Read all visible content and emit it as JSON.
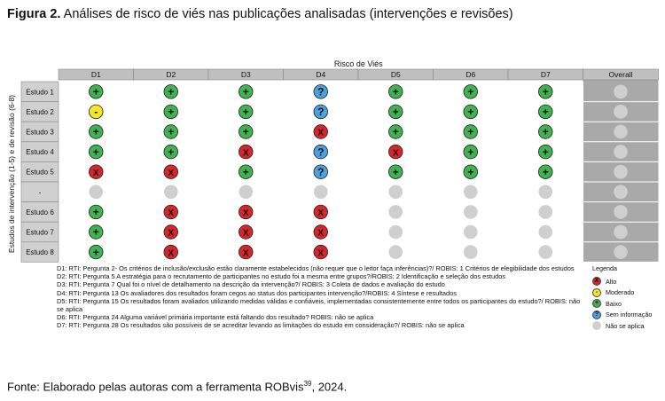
{
  "figure": {
    "label": "Figura 2.",
    "title": "Análises de risco de viés nas publicações analisadas (intervenções e revisões)",
    "source_prefix": "Fonte: Elaborado pelas autoras com a ferramenta ROBvis",
    "source_ref": "39",
    "source_suffix": ", 2024."
  },
  "chart_data": {
    "type": "table",
    "title": "Risco de Viés",
    "ylabel": "Estudos de intervenção (1-5) e de revisão (6-8)",
    "columns": [
      "D1",
      "D2",
      "D3",
      "D4",
      "D5",
      "D6",
      "D7",
      "Overall"
    ],
    "rows": [
      {
        "label": "Estudo 1",
        "values": [
          "low",
          "low",
          "low",
          "no_info",
          "low",
          "low",
          "low",
          "na"
        ]
      },
      {
        "label": "Estudo 2",
        "values": [
          "some",
          "low",
          "low",
          "no_info",
          "low",
          "low",
          "low",
          "na"
        ]
      },
      {
        "label": "Estudo 3",
        "values": [
          "low",
          "low",
          "low",
          "high",
          "low",
          "low",
          "low",
          "na"
        ]
      },
      {
        "label": "Estudo 4",
        "values": [
          "low",
          "low",
          "high",
          "no_info",
          "high",
          "low",
          "low",
          "na"
        ]
      },
      {
        "label": "Estudo 5",
        "values": [
          "high",
          "high",
          "low",
          "no_info",
          "low",
          "low",
          "low",
          "na"
        ]
      },
      {
        "label": "-",
        "values": [
          "na",
          "na",
          "na",
          "na",
          "na",
          "na",
          "na",
          "na"
        ]
      },
      {
        "label": "Estudo 6",
        "values": [
          "low",
          "high",
          "high",
          "high",
          "na",
          "na",
          "na",
          "na"
        ]
      },
      {
        "label": "Estudo 7",
        "values": [
          "low",
          "high",
          "high",
          "high",
          "na",
          "na",
          "na",
          "na"
        ]
      },
      {
        "label": "Estudo 8",
        "values": [
          "low",
          "high",
          "high",
          "high",
          "na",
          "na",
          "na",
          "na"
        ]
      }
    ],
    "symbols": {
      "low": "+",
      "some": "-",
      "high": "X",
      "no_info": "?",
      "na": ""
    },
    "colors": {
      "low": "#3fb34f",
      "some": "#f2e52b",
      "high": "#d7262b",
      "no_info": "#4aa3df",
      "na": "#cfcfcf",
      "header": "#bfbfbf",
      "overall_bg": "#a9a9a9",
      "rowlabel_bg": "#d0d0d0"
    },
    "legend": {
      "title": "Legenda",
      "position": "right",
      "items": [
        {
          "key": "high",
          "label": "Alto"
        },
        {
          "key": "some",
          "label": "Moderado"
        },
        {
          "key": "low",
          "label": "Baixo"
        },
        {
          "key": "no_info",
          "label": "Sem informação"
        },
        {
          "key": "na",
          "label": "Não se aplica"
        }
      ]
    },
    "notes": [
      "D1: RTI: Pergunta 2- Os critérios de inclusão/exclusão estão claramente estabelecidos (não requer que o leitor faça inferências)?/ ROBIS: 1 Critérios de elegibilidade dos estudos",
      "D2: RTI: Pergunta 5 A estratégia para o recrutamento de participantes no estudo foi a mesma entre grupos?/ROBIS: 2 Identificação e seleção dos estudos",
      "D3: RTI: Pergunta 7 Qual foi o nível de detalhamento na descrição da intervenção?/ ROBIS: 3 Coleta de dados e avaliação do estudo",
      "D4: RTI: Pergunta 13 Os avaliadores dos resultados foram cegos ao status dos participantes intervenção?/ROBIS: 4 Síntese e resultados",
      "D5: RTI: Pergunta 15 Os resultados foram avaliados utilizando medidas válidas e confiáveis, implementadas consistentemente entre todos os participantes do estudo?/ ROBIS: não se aplica",
      "D6: RTI: Pergunta 24 Alguma variável primária importante está faltando dos resultado? ROBIS: não se aplica",
      "D7: RTI: Pergunta 28 Os resultados são possíveis de se acreditar levando as limitações do estudo em consideração?/ ROBIS: não se aplica"
    ]
  }
}
